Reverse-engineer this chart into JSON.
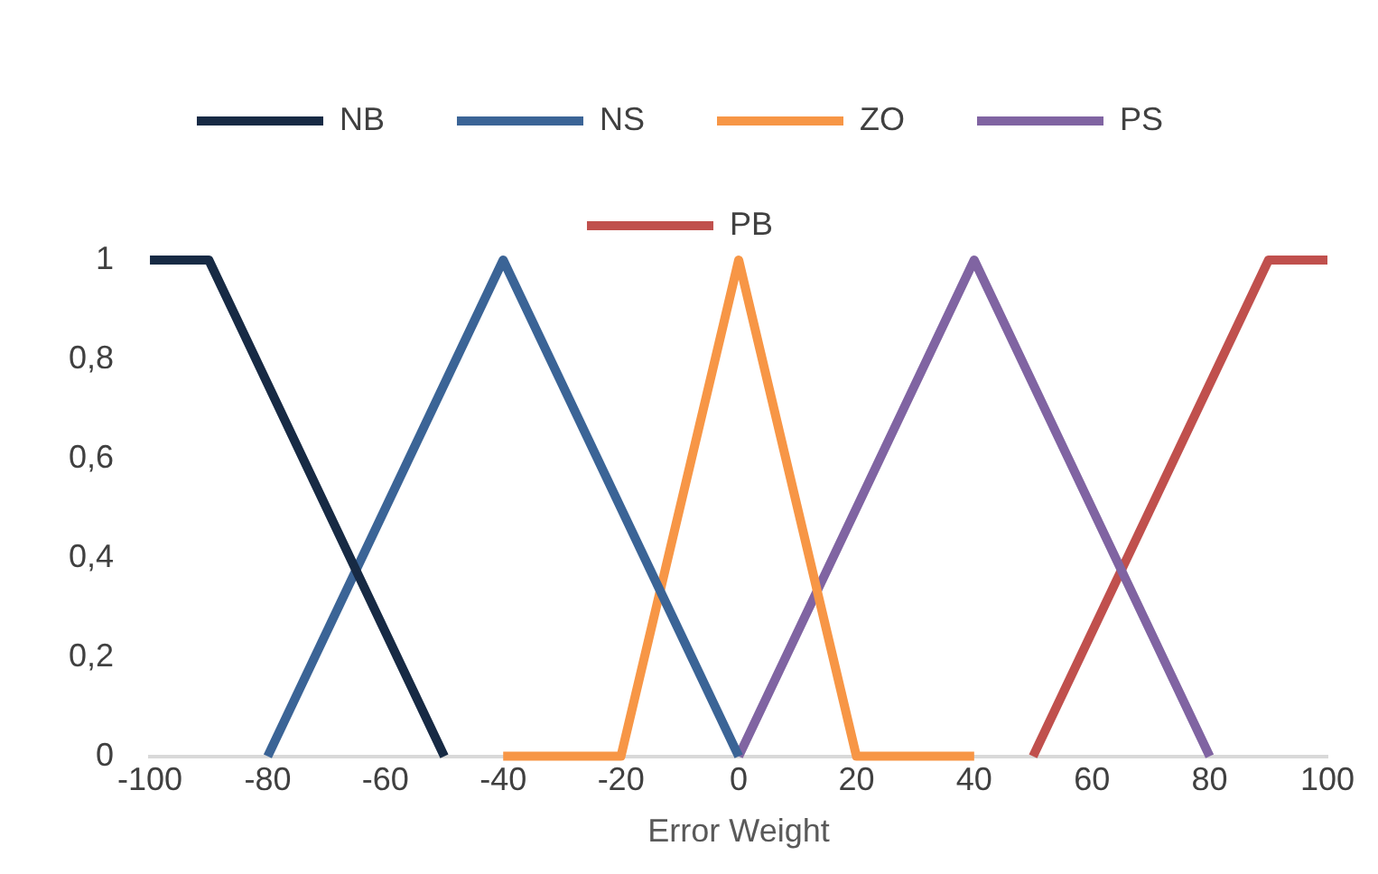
{
  "chart_data": {
    "type": "line",
    "xlabel": "Error Weight",
    "xlim": [
      -100,
      100
    ],
    "xticks": [
      -100,
      -80,
      -60,
      -40,
      -20,
      0,
      20,
      40,
      60,
      80,
      100
    ],
    "ylim": [
      0,
      1
    ],
    "yticks": [
      0,
      {
        "value": 0.2,
        "label": "0,2"
      },
      {
        "value": 0.4,
        "label": "0,4"
      },
      {
        "value": 0.6,
        "label": "0,6"
      },
      {
        "value": 0.8,
        "label": "0,8"
      },
      1
    ],
    "grid": false,
    "legend": "top",
    "marker": "none",
    "line_style": "solid",
    "series": [
      {
        "name": "NB",
        "color": "#172a44",
        "x": [
          -100,
          -90,
          -50
        ],
        "values": [
          1,
          1,
          0
        ]
      },
      {
        "name": "NS",
        "color": "#3b6496",
        "x": [
          -80,
          -40,
          0
        ],
        "values": [
          0,
          1,
          0
        ]
      },
      {
        "name": "ZO",
        "color": "#f79646",
        "x": [
          -40,
          -20,
          0,
          20,
          40
        ],
        "values": [
          0,
          0,
          1,
          0,
          0
        ]
      },
      {
        "name": "PS",
        "color": "#8064a2",
        "x": [
          0,
          40,
          80
        ],
        "values": [
          0,
          1,
          0
        ]
      },
      {
        "name": "PB",
        "color": "#c0504d",
        "x": [
          50,
          90,
          100
        ],
        "values": [
          0,
          1,
          1
        ]
      }
    ]
  }
}
